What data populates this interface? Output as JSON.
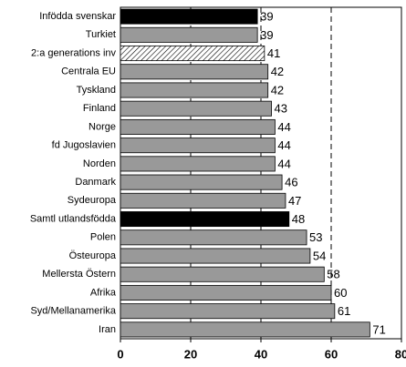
{
  "chart_data": {
    "type": "barh",
    "categories": [
      "Infödda svenskar",
      "Turkiet",
      "2:a generations inv",
      "Centrala EU",
      "Tyskland",
      "Finland",
      "Norge",
      "fd Jugoslavien",
      "Norden",
      "Danmark",
      "Sydeuropa",
      "Samtl utlandsfödda",
      "Polen",
      "Östeuropa",
      "Mellersta Östern",
      "Afrika",
      "Syd/Mellanamerika",
      "Iran"
    ],
    "values": [
      39,
      39,
      41,
      42,
      42,
      43,
      44,
      44,
      44,
      46,
      47,
      48,
      53,
      54,
      58,
      60,
      61,
      71
    ],
    "colors": [
      "#000000",
      "#999999",
      "hatch",
      "#999999",
      "#999999",
      "#999999",
      "#999999",
      "#999999",
      "#999999",
      "#999999",
      "#999999",
      "#000000",
      "#999999",
      "#999999",
      "#999999",
      "#999999",
      "#999999",
      "#999999"
    ],
    "xlim": [
      0,
      80
    ],
    "xticks": [
      0,
      20,
      40,
      60,
      80
    ],
    "grid": "dashed"
  }
}
